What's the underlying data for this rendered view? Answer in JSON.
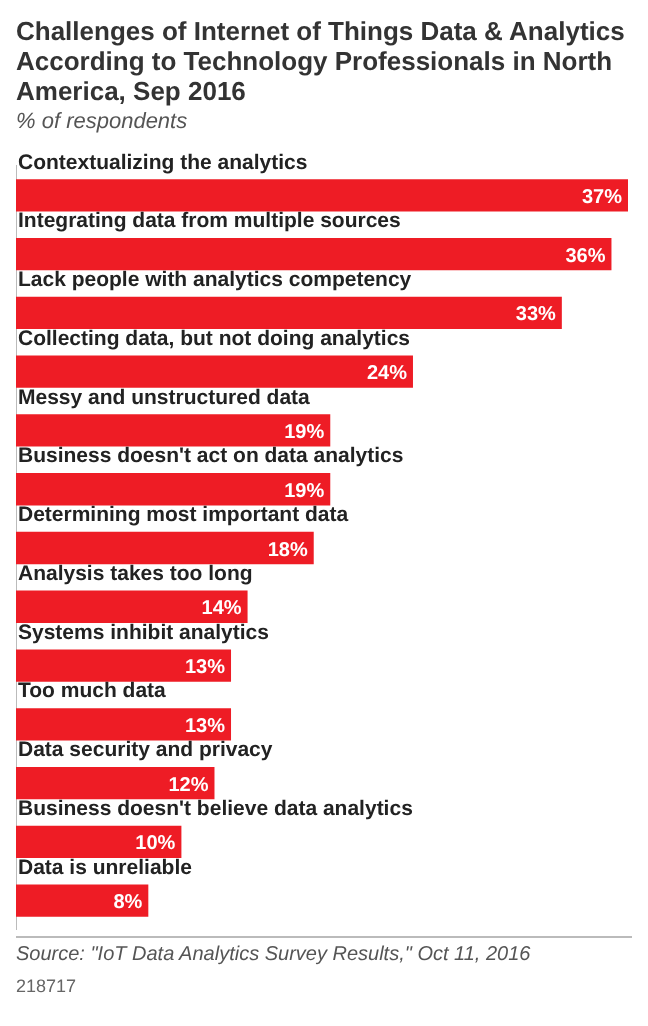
{
  "chart_data": {
    "type": "bar",
    "orientation": "horizontal",
    "title": "Challenges of Internet of Things Data & Analytics According to Technology Professionals in North America, Sep 2016",
    "subtitle": "% of respondents",
    "categories": [
      "Contextualizing the analytics",
      "Integrating data from multiple sources",
      "Lack people with analytics competency",
      "Collecting data, but not doing analytics",
      "Messy and unstructured data",
      "Business doesn't act on data analytics",
      "Determining most important data",
      "Analysis takes too long",
      "Systems inhibit analytics",
      "Too much data",
      "Data security and privacy",
      "Business doesn't believe data analytics",
      "Data is unreliable"
    ],
    "values": [
      37,
      36,
      33,
      24,
      19,
      19,
      18,
      14,
      13,
      13,
      12,
      10,
      8
    ],
    "value_labels": [
      "37%",
      "36%",
      "33%",
      "24%",
      "19%",
      "19%",
      "18%",
      "14%",
      "13%",
      "13%",
      "12%",
      "10%",
      "8%"
    ],
    "color": "#ee1c25",
    "grid": false,
    "legend": false,
    "annotations": [
      "Source: \"IoT Data Analytics Survey Results,\" Oct 11, 2016",
      "218717"
    ]
  }
}
